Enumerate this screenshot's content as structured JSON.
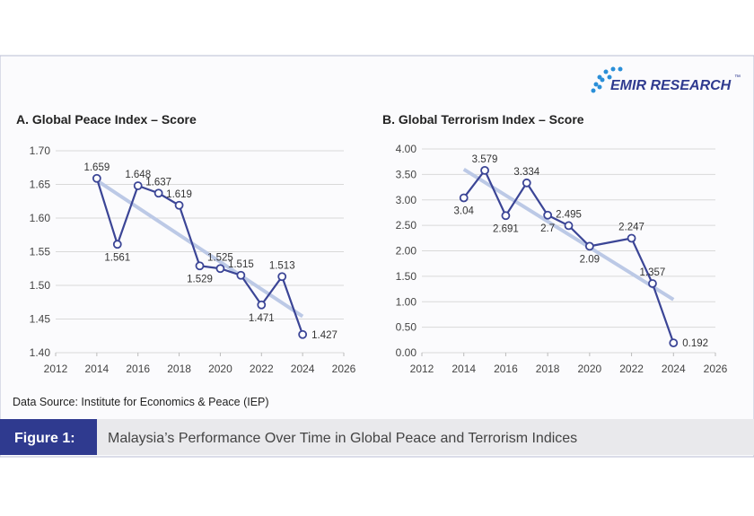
{
  "logo": "EMIR RESEARCH",
  "logo_mark": "™",
  "source": "Data Source: Institute for Economics & Peace (IEP)",
  "figure_label": "Figure 1:",
  "caption": "Malaysia’s Performance Over Time in Global Peace and Terrorism Indices",
  "chart_data": [
    {
      "type": "line",
      "title": "A. Global Peace Index – Score",
      "x": [
        2014,
        2015,
        2016,
        2017,
        2018,
        2019,
        2020,
        2021,
        2022,
        2023,
        2024
      ],
      "values": [
        1.659,
        1.561,
        1.648,
        1.637,
        1.619,
        1.529,
        1.525,
        1.515,
        1.471,
        1.513,
        1.427
      ],
      "color": "#3b4596",
      "trendline": true,
      "trend_color": "#bcc9e6",
      "xlim": [
        2012,
        2026
      ],
      "xticks": [
        2012,
        2014,
        2016,
        2018,
        2020,
        2022,
        2024,
        2026
      ],
      "ylim": [
        1.4,
        1.7
      ],
      "yticks": [
        {
          "value": 1.4,
          "label": "1.40"
        },
        1.45,
        {
          "value": 1.5,
          "label": "1.50"
        },
        1.55,
        {
          "value": 1.6,
          "label": "1.60"
        },
        1.65,
        {
          "value": 1.7,
          "label": "1.70"
        }
      ],
      "grid": true
    },
    {
      "type": "line",
      "title": "B. Global Terrorism Index – Score",
      "x": [
        2014,
        2015,
        2016,
        2017,
        2018,
        2019,
        2020,
        2022,
        2023,
        2024
      ],
      "values": [
        3.04,
        3.579,
        2.691,
        3.334,
        2.7,
        2.495,
        2.09,
        2.247,
        1.357,
        0.192
      ],
      "color": "#3b4596",
      "trendline": true,
      "trend_color": "#bcc9e6",
      "xlim": [
        2012,
        2026
      ],
      "xticks": [
        2012,
        2014,
        2016,
        2018,
        2020,
        2022,
        2024,
        2026
      ],
      "ylim": [
        0,
        4
      ],
      "yticks": [
        {
          "value": 0,
          "label": "0.00"
        },
        {
          "value": 0.5,
          "label": "0.50"
        },
        {
          "value": 1,
          "label": "1.00"
        },
        {
          "value": 1.5,
          "label": "1.50"
        },
        {
          "value": 2,
          "label": "2.00"
        },
        {
          "value": 2.5,
          "label": "2.50"
        },
        {
          "value": 3,
          "label": "3.00"
        },
        {
          "value": 3.5,
          "label": "3.50"
        },
        {
          "value": 4,
          "label": "4.00"
        }
      ],
      "grid": true
    }
  ]
}
